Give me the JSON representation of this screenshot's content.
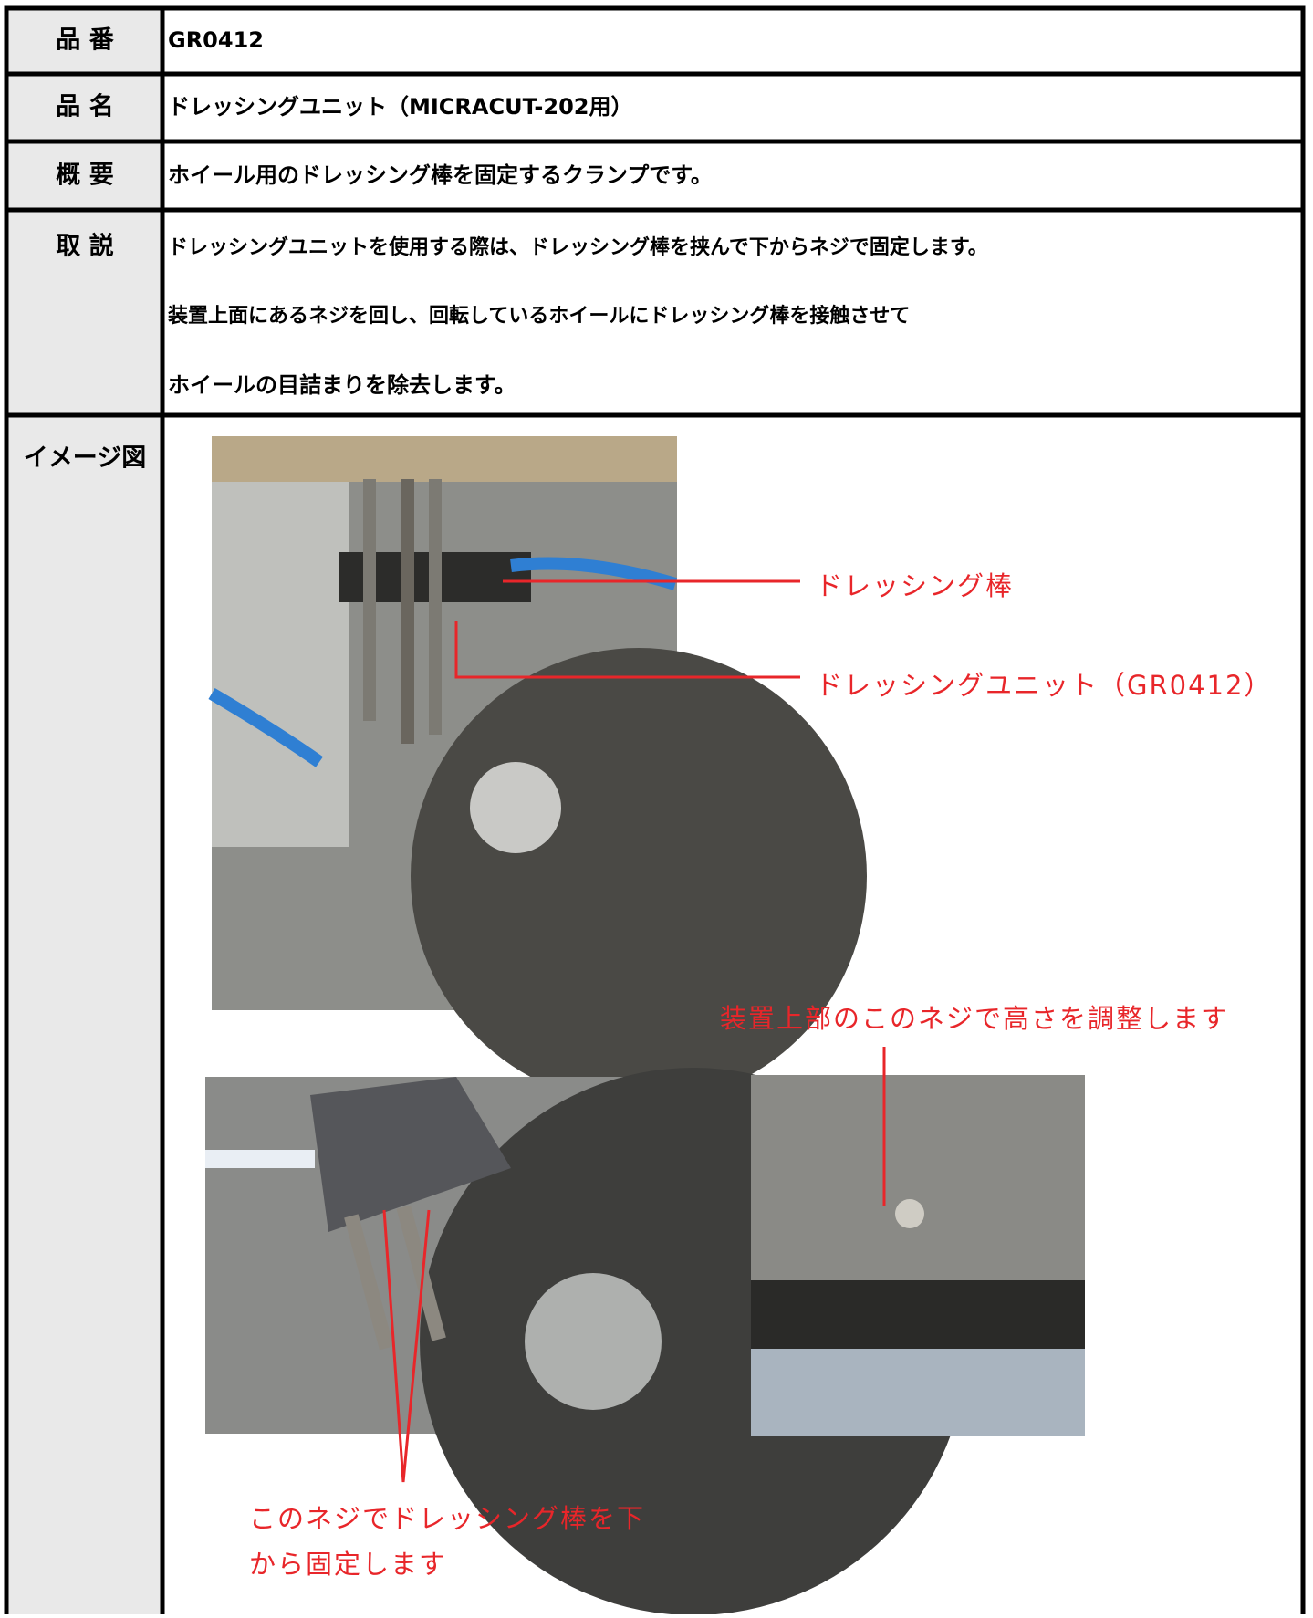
{
  "table": {
    "rows": [
      {
        "label": "品 番",
        "content": [
          "GR0412"
        ]
      },
      {
        "label": "品 名",
        "content": [
          "ドレッシングユニット（MICRACUT-202用）"
        ]
      },
      {
        "label": "概 要",
        "content": [
          "ホイール用のドレッシング棒を固定するクランプです。"
        ]
      },
      {
        "label": "取 説",
        "content": [
          "ドレッシングユニットを使用する際は、ドレッシング棒を挟んで下からネジで固定します。",
          "装置上面にあるネジを回し、回転しているホイールにドレッシング棒を接触させて",
          "ホイールの目詰まりを除去します。"
        ]
      },
      {
        "label": "イメージ図",
        "content": []
      }
    ]
  },
  "annotations": [
    "ドレッシング棒",
    "ドレッシングユニット（GR0412）",
    "装置上部のこのネジで高さを調整します",
    "このネジでドレッシング棒を下",
    "から固定します"
  ]
}
